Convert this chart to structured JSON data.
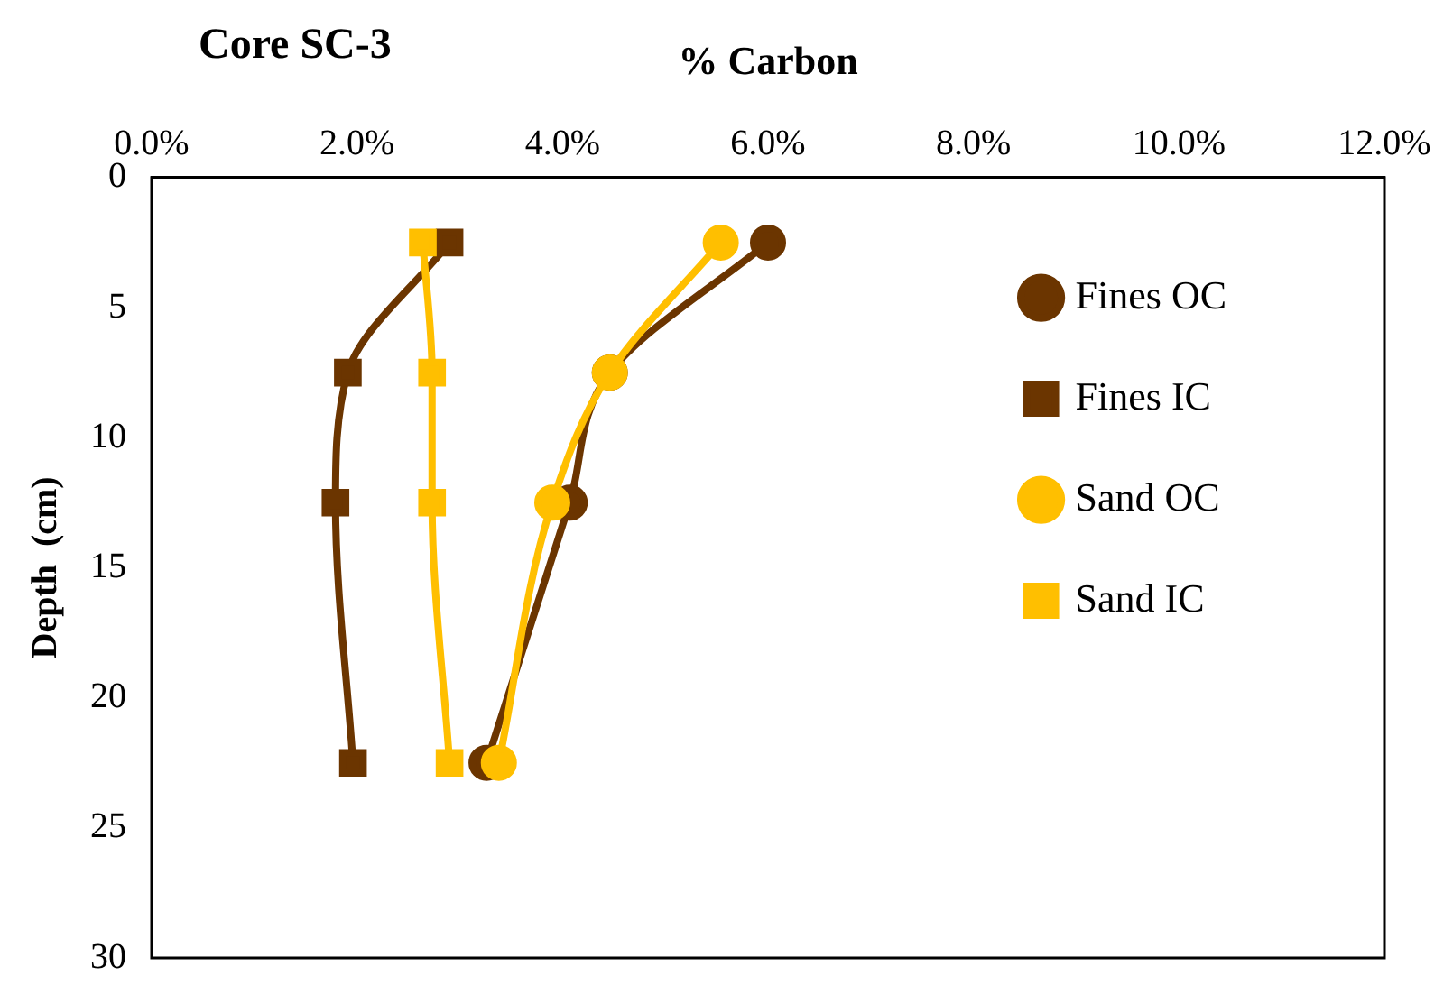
{
  "chart_data": {
    "type": "line",
    "title": "Core SC-3",
    "xlabel": "% Carbon",
    "ylabel": "Depth  (cm)",
    "xlim": [
      0,
      12
    ],
    "xticks": [
      {
        "value": 0,
        "label": "0.0%"
      },
      {
        "value": 2,
        "label": "2.0%"
      },
      {
        "value": 4,
        "label": "4.0%"
      },
      {
        "value": 6,
        "label": "6.0%"
      },
      {
        "value": 8,
        "label": "8.0%"
      },
      {
        "value": 10,
        "label": "10.0%"
      },
      {
        "value": 12,
        "label": "12.0%"
      }
    ],
    "ylim": [
      30,
      0
    ],
    "yticks": [
      0,
      5,
      10,
      15,
      20,
      25,
      30
    ],
    "grid": false,
    "legend": "right",
    "series": [
      {
        "name": "Fines OC",
        "color": "#6b3500",
        "marker": "circle",
        "x": [
          6.0,
          4.46,
          4.07,
          3.26
        ],
        "values": [
          2.5,
          7.5,
          12.5,
          22.5
        ]
      },
      {
        "name": "Fines IC",
        "color": "#6b3500",
        "marker": "square",
        "x": [
          2.9,
          1.91,
          1.79,
          1.96
        ],
        "values": [
          2.5,
          7.5,
          12.5,
          22.5
        ]
      },
      {
        "name": "Sand OC",
        "color": "#ffbf00",
        "marker": "circle",
        "x": [
          5.54,
          4.46,
          3.9,
          3.38
        ],
        "values": [
          2.5,
          7.5,
          12.5,
          22.5
        ]
      },
      {
        "name": "Sand IC",
        "color": "#ffbf00",
        "marker": "square",
        "x": [
          2.64,
          2.73,
          2.73,
          2.9
        ],
        "values": [
          2.5,
          7.5,
          12.5,
          22.5
        ]
      }
    ]
  }
}
